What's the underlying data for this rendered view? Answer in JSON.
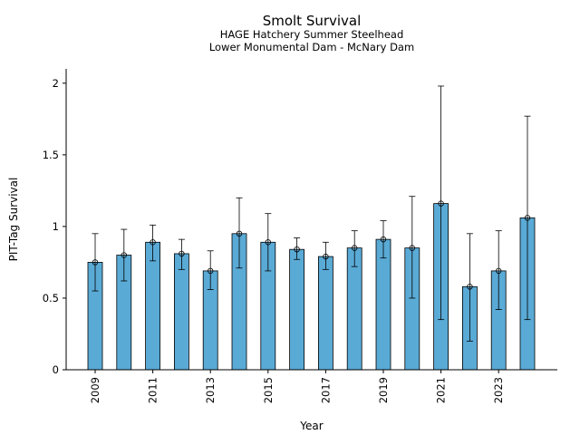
{
  "chart_data": {
    "type": "bar",
    "title": "Smolt Survival",
    "subtitle_lines": [
      "HAGE Hatchery Summer Steelhead",
      "Lower Monumental Dam - McNary Dam"
    ],
    "xlabel": "Year",
    "ylabel": "PIT-Tag Survival",
    "ylim": [
      0,
      2.1
    ],
    "yticks": [
      0,
      0.5,
      1,
      1.5,
      2
    ],
    "ytick_labels": [
      "0",
      "0.5",
      "1",
      "1.5",
      "2"
    ],
    "xtick_labels": [
      "2009",
      "2011",
      "2013",
      "2015",
      "2017",
      "2019",
      "2021",
      "2023"
    ],
    "bar_color": "#5aaad6",
    "grid": false,
    "categories": [
      "2009",
      "2010",
      "2011",
      "2012",
      "2013",
      "2014",
      "2015",
      "2016",
      "2017",
      "2018",
      "2019",
      "2020",
      "2021",
      "2022",
      "2023",
      "2024"
    ],
    "values": [
      0.75,
      0.8,
      0.89,
      0.81,
      0.69,
      0.95,
      0.89,
      0.84,
      0.79,
      0.85,
      0.91,
      0.85,
      1.16,
      0.58,
      0.69,
      1.06
    ],
    "error_low": [
      0.55,
      0.62,
      0.76,
      0.7,
      0.56,
      0.71,
      0.69,
      0.77,
      0.7,
      0.72,
      0.78,
      0.5,
      0.35,
      0.2,
      0.42,
      0.35
    ],
    "error_high": [
      0.95,
      0.98,
      1.01,
      0.91,
      0.83,
      1.2,
      1.09,
      0.92,
      0.89,
      0.97,
      1.04,
      1.21,
      1.98,
      0.95,
      0.97,
      1.77
    ]
  }
}
